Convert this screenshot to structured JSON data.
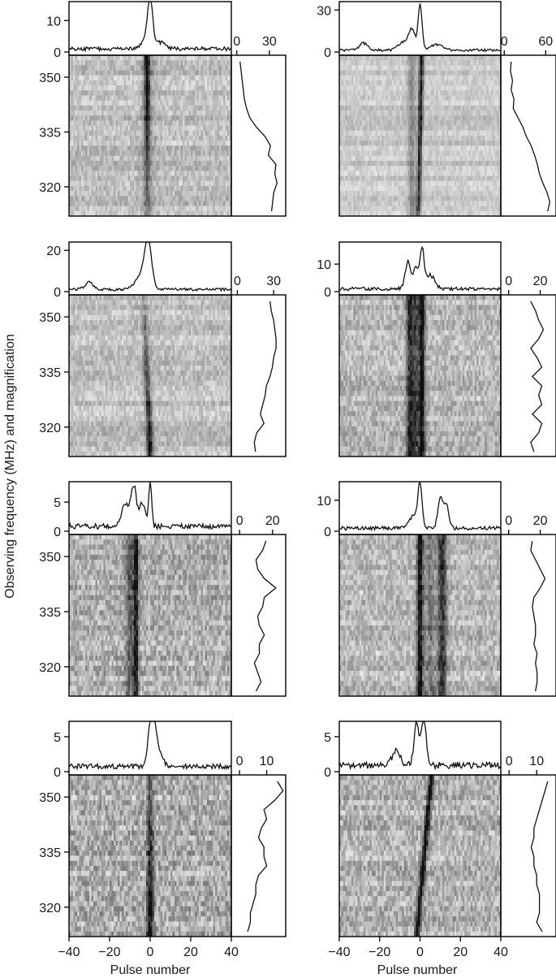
{
  "figure": {
    "ylabel": "Observing frequency (MHz) and magnification",
    "xlabel": "Pulse number",
    "colors": {
      "ink": "#111111",
      "frame": "#000000",
      "background": "#ffffff",
      "map_light": "#f4f4f4",
      "map_dark": "#111111"
    }
  },
  "chart_data": [
    {
      "type": "heatmap",
      "panel": "row1-left",
      "x": [
        -40,
        40
      ],
      "y_ticks": [
        350,
        335,
        320
      ],
      "ylim": [
        312,
        356
      ],
      "x_ticks": [],
      "profile": {
        "ticks": [
          0,
          10
        ],
        "ylim": [
          0,
          16
        ],
        "peaks": [
          [
            0,
            14.5,
            1.2
          ],
          [
            -2,
            3,
            2.5
          ],
          [
            5,
            2,
            2.5
          ]
        ],
        "noise": 1.2
      },
      "spectrum": {
        "ticks": [
          0,
          30
        ],
        "xlim": [
          -5,
          45
        ],
        "values": [
          3,
          4,
          5,
          6,
          7,
          9,
          12,
          18,
          26,
          31,
          29,
          36,
          35,
          37,
          34,
          33,
          32
        ]
      },
      "map": {
        "tracks": [
          {
            "x0": -1.5,
            "slope": 0.0,
            "amp": 0.9,
            "width": 0.9,
            "fade": 0.55
          },
          {
            "x0": -1,
            "slope": 0.0,
            "amp": 0.2,
            "width": 2.5,
            "fade": 0
          }
        ],
        "noise": 0.22
      }
    },
    {
      "type": "heatmap",
      "panel": "row1-right",
      "x": [
        -40,
        40
      ],
      "y_ticks": [],
      "ylim": [
        312,
        356
      ],
      "x_ticks": [],
      "profile": {
        "ticks": [
          0,
          30
        ],
        "ylim": [
          0,
          36
        ],
        "peaks": [
          [
            0,
            32,
            1.0
          ],
          [
            -4,
            14,
            1.5
          ],
          [
            -8,
            6,
            2.5
          ],
          [
            -28,
            5,
            2
          ],
          [
            8,
            4,
            3
          ]
        ],
        "noise": 1.8
      },
      "spectrum": {
        "ticks": [
          0,
          60
        ],
        "xlim": [
          -5,
          75
        ],
        "values": [
          10,
          9,
          12,
          10,
          14,
          13,
          20,
          27,
          32,
          39,
          44,
          48,
          51,
          56,
          62,
          66,
          63
        ]
      },
      "map": {
        "tracks": [
          {
            "x0": 0,
            "slope": -0.02,
            "amp": 0.95,
            "width": 0.8,
            "fade": 0.2
          },
          {
            "x0": -4,
            "slope": 0.0,
            "amp": 0.3,
            "width": 1.5,
            "fade": 0
          }
        ],
        "noise": 0.15
      }
    },
    {
      "type": "heatmap",
      "panel": "row2-left",
      "x": [
        -40,
        40
      ],
      "y_ticks": [
        350,
        335,
        320
      ],
      "ylim": [
        312,
        356
      ],
      "x_ticks": [],
      "profile": {
        "ticks": [
          0,
          20
        ],
        "ylim": [
          0,
          24
        ],
        "peaks": [
          [
            -1,
            21,
            1.6
          ],
          [
            -3,
            5,
            3
          ],
          [
            -30,
            3.5,
            2
          ],
          [
            -5,
            3,
            3
          ]
        ],
        "noise": 1.3
      },
      "spectrum": {
        "ticks": [
          0,
          30
        ],
        "xlim": [
          -5,
          40
        ],
        "values": [
          27,
          28,
          30,
          31,
          32,
          32,
          30,
          29,
          27,
          24,
          23,
          21,
          19,
          22,
          16,
          14,
          15
        ]
      },
      "map": {
        "tracks": [
          {
            "x0": -1.5,
            "slope": 0.04,
            "amp": 0.9,
            "width": 1.1,
            "fade": -0.5
          }
        ],
        "noise": 0.22
      }
    },
    {
      "type": "heatmap",
      "panel": "row2-right",
      "x": [
        -40,
        40
      ],
      "y_ticks": [],
      "ylim": [
        312,
        356
      ],
      "x_ticks": [],
      "profile": {
        "ticks": [
          0,
          10
        ],
        "ylim": [
          0,
          18
        ],
        "peaks": [
          [
            1,
            14,
            1.0
          ],
          [
            -6,
            10,
            1.3
          ],
          [
            -2,
            8,
            1.2
          ],
          [
            5,
            5,
            2.2
          ]
        ],
        "noise": 1.3
      },
      "spectrum": {
        "ticks": [
          0,
          20
        ],
        "xlim": [
          -5,
          30
        ],
        "values": [
          14,
          17,
          19,
          22,
          19,
          14,
          18,
          21,
          15,
          21,
          19,
          21,
          15,
          21,
          19,
          14,
          16
        ]
      },
      "map": {
        "tracks": [
          {
            "x0": 1,
            "slope": 0.0,
            "amp": 0.9,
            "width": 1.0,
            "fade": 0
          },
          {
            "x0": -5,
            "slope": 0.0,
            "amp": 0.7,
            "width": 1.3,
            "fade": 0
          },
          {
            "x0": -2,
            "slope": 0.0,
            "amp": 0.5,
            "width": 1.2,
            "fade": 0
          }
        ],
        "noise": 0.3
      }
    },
    {
      "type": "heatmap",
      "panel": "row3-left",
      "x": [
        -40,
        40
      ],
      "y_ticks": [
        350,
        335,
        320
      ],
      "ylim": [
        312,
        356
      ],
      "x_ticks": [],
      "profile": {
        "ticks": [
          0,
          5
        ],
        "ylim": [
          0,
          8.5
        ],
        "peaks": [
          [
            -8,
            6.5,
            1.2
          ],
          [
            0,
            7.5,
            0.7
          ],
          [
            -12,
            4,
            2
          ],
          [
            -4,
            4,
            1.5
          ]
        ],
        "noise": 0.9
      },
      "spectrum": {
        "ticks": [
          0,
          20
        ],
        "xlim": [
          -5,
          28
        ],
        "values": [
          16,
          14,
          10,
          11,
          15,
          22,
          15,
          14,
          11,
          12,
          15,
          12,
          12,
          9,
          11,
          13,
          10
        ]
      },
      "map": {
        "tracks": [
          {
            "x0": -7,
            "slope": 0.0,
            "amp": 0.7,
            "width": 0.9,
            "fade": 0
          },
          {
            "x0": -10,
            "slope": 0.0,
            "amp": 0.35,
            "width": 1.6,
            "fade": 0
          }
        ],
        "noise": 0.35
      }
    },
    {
      "type": "heatmap",
      "panel": "row3-right",
      "x": [
        -40,
        40
      ],
      "y_ticks": [],
      "ylim": [
        312,
        356
      ],
      "x_ticks": [],
      "profile": {
        "ticks": [
          0,
          10
        ],
        "ylim": [
          0,
          16
        ],
        "peaks": [
          [
            0,
            13,
            1.0
          ],
          [
            10,
            10,
            1.2
          ],
          [
            13,
            8,
            1.2
          ],
          [
            -3,
            4,
            2.5
          ]
        ],
        "noise": 1.2
      },
      "spectrum": {
        "ticks": [
          0,
          20
        ],
        "xlim": [
          -5,
          30
        ],
        "values": [
          15,
          14,
          17,
          20,
          23,
          20,
          16,
          15,
          16,
          17,
          17,
          16,
          18,
          17,
          18,
          18,
          17
        ]
      },
      "map": {
        "tracks": [
          {
            "x0": 0,
            "slope": 0.0,
            "amp": 0.85,
            "width": 1.1,
            "fade": 0
          },
          {
            "x0": 11,
            "slope": 0.0,
            "amp": 0.65,
            "width": 1.5,
            "fade": 0
          },
          {
            "x0": 5,
            "slope": 0.0,
            "amp": 0.3,
            "width": 2,
            "fade": 0
          }
        ],
        "noise": 0.3
      }
    },
    {
      "type": "heatmap",
      "panel": "row4-left",
      "x": [
        -40,
        40
      ],
      "y_ticks": [
        350,
        335,
        320
      ],
      "ylim": [
        312,
        356
      ],
      "x_ticks": [
        -40,
        -20,
        0,
        20,
        40
      ],
      "profile": {
        "ticks": [
          0,
          5
        ],
        "ylim": [
          0,
          7.2
        ],
        "peaks": [
          [
            0,
            5.5,
            1.2
          ],
          [
            2,
            4.5,
            1.2
          ],
          [
            4,
            2,
            2
          ]
        ],
        "noise": 0.7
      },
      "spectrum": {
        "ticks": [
          0,
          10
        ],
        "xlim": [
          -3,
          17
        ],
        "values": [
          14,
          16,
          13,
          9,
          10,
          8,
          7,
          9,
          9,
          10,
          7,
          6,
          6,
          5,
          4,
          4,
          3
        ]
      },
      "map": {
        "tracks": [
          {
            "x0": 0,
            "slope": 0.0,
            "amp": 0.8,
            "width": 1.2,
            "fade": -0.3
          }
        ],
        "noise": 0.4
      }
    },
    {
      "type": "heatmap",
      "panel": "row4-right",
      "x": [
        -40,
        40
      ],
      "y_ticks": [],
      "ylim": [
        312,
        356
      ],
      "x_ticks": [
        -40,
        -20,
        0,
        20,
        40
      ],
      "profile": {
        "ticks": [
          0,
          5
        ],
        "ylim": [
          0,
          7.2
        ],
        "peaks": [
          [
            -2,
            4.5,
            1.0
          ],
          [
            2,
            5,
            1.0
          ],
          [
            0,
            3,
            2
          ],
          [
            -12,
            2,
            2
          ]
        ],
        "noise": 1.0
      },
      "spectrum": {
        "ticks": [
          0,
          10
        ],
        "xlim": [
          -3,
          17
        ],
        "values": [
          14,
          13,
          12,
          11,
          10,
          9,
          9,
          8,
          9,
          9,
          10,
          10,
          11,
          11,
          11,
          10,
          12
        ]
      },
      "map": {
        "tracks": [
          {
            "x0": 2,
            "slope": -0.09,
            "amp": 0.85,
            "width": 0.9,
            "fade": 0
          }
        ],
        "noise": 0.35
      }
    }
  ]
}
